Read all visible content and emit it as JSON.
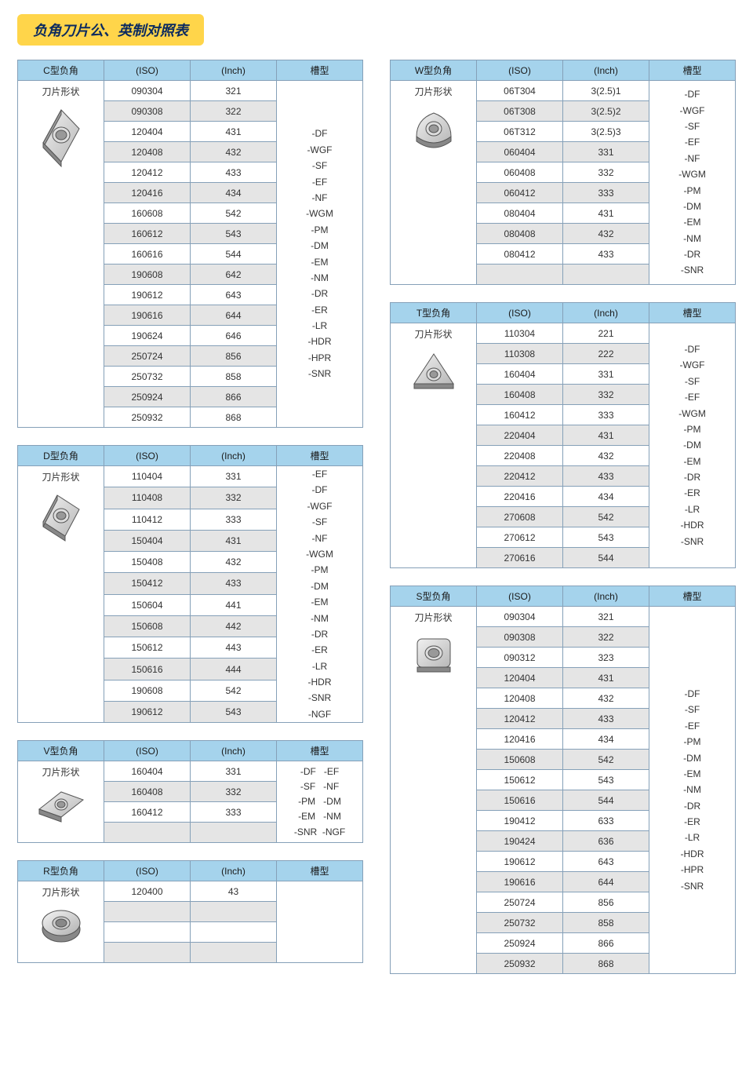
{
  "page_title": "负角刀片公、英制对照表",
  "headers": {
    "iso": "(ISO)",
    "inch": "(Inch)",
    "type": "槽型",
    "shape_label": "刀片形状"
  },
  "colors": {
    "header_bg": "#a5d3ec",
    "border": "#85a0b8",
    "alt_row": "#e5e5e5",
    "title_bg": "#ffd54a",
    "title_fg": "#0b2a5f"
  },
  "tableC": {
    "name": "C型负角",
    "rows": [
      [
        "090304",
        "321"
      ],
      [
        "090308",
        "322"
      ],
      [
        "120404",
        "431"
      ],
      [
        "120408",
        "432"
      ],
      [
        "120412",
        "433"
      ],
      [
        "120416",
        "434"
      ],
      [
        "160608",
        "542"
      ],
      [
        "160612",
        "543"
      ],
      [
        "160616",
        "544"
      ],
      [
        "190608",
        "642"
      ],
      [
        "190612",
        "643"
      ],
      [
        "190616",
        "644"
      ],
      [
        "190624",
        "646"
      ],
      [
        "250724",
        "856"
      ],
      [
        "250732",
        "858"
      ],
      [
        "250924",
        "866"
      ],
      [
        "250932",
        "868"
      ]
    ],
    "types": [
      "-DF",
      "-WGF",
      "-SF",
      "-EF",
      "-NF",
      "-WGM",
      "-PM",
      "-DM",
      "-EM",
      "-NM",
      "-DR",
      "-ER",
      "-LR",
      "-HDR",
      "-HPR",
      "-SNR"
    ]
  },
  "tableD": {
    "name": "D型负角",
    "rows": [
      [
        "110404",
        "331"
      ],
      [
        "110408",
        "332"
      ],
      [
        "110412",
        "333"
      ],
      [
        "150404",
        "431"
      ],
      [
        "150408",
        "432"
      ],
      [
        "150412",
        "433"
      ],
      [
        "150604",
        "441"
      ],
      [
        "150608",
        "442"
      ],
      [
        "150612",
        "443"
      ],
      [
        "150616",
        "444"
      ],
      [
        "190608",
        "542"
      ],
      [
        "190612",
        "543"
      ]
    ],
    "types": [
      "-EF",
      "-DF",
      "-WGF",
      "-SF",
      "-NF",
      "-WGM",
      "-PM",
      "-DM",
      "-EM",
      "-NM",
      "-DR",
      "-ER",
      "-LR",
      "-HDR",
      "-SNR",
      "-NGF"
    ]
  },
  "tableV": {
    "name": "V型负角",
    "rows": [
      [
        "160404",
        "331"
      ],
      [
        "160408",
        "332"
      ],
      [
        "160412",
        "333"
      ],
      [
        "",
        ""
      ]
    ],
    "types": [
      "-DF   -EF",
      "-SF   -NF",
      "-PM   -DM",
      "-EM   -NM",
      "-SNR  -NGF"
    ]
  },
  "tableR": {
    "name": "R型负角",
    "rows": [
      [
        "120400",
        "43"
      ],
      [
        "",
        ""
      ],
      [
        "",
        ""
      ],
      [
        "",
        ""
      ]
    ],
    "types": []
  },
  "tableW": {
    "name": "W型负角",
    "rows": [
      [
        "06T304",
        "3(2.5)1"
      ],
      [
        "06T308",
        "3(2.5)2"
      ],
      [
        "06T312",
        "3(2.5)3"
      ],
      [
        "060404",
        "331"
      ],
      [
        "060408",
        "332"
      ],
      [
        "060412",
        "333"
      ],
      [
        "080404",
        "431"
      ],
      [
        "080408",
        "432"
      ],
      [
        "080412",
        "433"
      ],
      [
        "",
        ""
      ]
    ],
    "types": [
      "-DF",
      "-WGF",
      "-SF",
      "-EF",
      "-NF",
      "-WGM",
      "-PM",
      "-DM",
      "-EM",
      "-NM",
      "-DR",
      "-SNR"
    ]
  },
  "tableT": {
    "name": "T型负角",
    "rows": [
      [
        "110304",
        "221"
      ],
      [
        "110308",
        "222"
      ],
      [
        "160404",
        "331"
      ],
      [
        "160408",
        "332"
      ],
      [
        "160412",
        "333"
      ],
      [
        "220404",
        "431"
      ],
      [
        "220408",
        "432"
      ],
      [
        "220412",
        "433"
      ],
      [
        "220416",
        "434"
      ],
      [
        "270608",
        "542"
      ],
      [
        "270612",
        "543"
      ],
      [
        "270616",
        "544"
      ]
    ],
    "types": [
      "-DF",
      "-WGF",
      "-SF",
      "-EF",
      "-WGM",
      "-PM",
      "-DM",
      "-EM",
      "-DR",
      "-ER",
      "-LR",
      "-HDR",
      "-SNR"
    ]
  },
  "tableS": {
    "name": "S型负角",
    "rows": [
      [
        "090304",
        "321"
      ],
      [
        "090308",
        "322"
      ],
      [
        "090312",
        "323"
      ],
      [
        "120404",
        "431"
      ],
      [
        "120408",
        "432"
      ],
      [
        "120412",
        "433"
      ],
      [
        "120416",
        "434"
      ],
      [
        "150608",
        "542"
      ],
      [
        "150612",
        "543"
      ],
      [
        "150616",
        "544"
      ],
      [
        "190412",
        "633"
      ],
      [
        "190424",
        "636"
      ],
      [
        "190612",
        "643"
      ],
      [
        "190616",
        "644"
      ],
      [
        "250724",
        "856"
      ],
      [
        "250732",
        "858"
      ],
      [
        "250924",
        "866"
      ],
      [
        "250932",
        "868"
      ]
    ],
    "types": [
      "-DF",
      "-SF",
      "-EF",
      "-PM",
      "-DM",
      "-EM",
      "-NM",
      "-DR",
      "-ER",
      "-LR",
      "-HDR",
      "-HPR",
      "-SNR"
    ]
  },
  "shapes": {
    "C": "<svg class='insert-svg' width='70' height='80' viewBox='0 0 70 80'><defs><linearGradient id='gC' x1='0' y1='0' x2='1' y2='1'><stop offset='0' stop-color='#f0f0f0'/><stop offset='1' stop-color='#b8b8b8'/></linearGradient></defs><path d='M35 6 L58 30 L35 72 L12 48 Z' fill='url(#gC)' stroke='#555'/><path d='M35 6 L12 48 L12 54 L35 12 Z' fill='#999' stroke='#555'/><path d='M12 48 L35 72 L35 78 L12 54 Z' fill='#888' stroke='#555'/><ellipse cx='35' cy='38' rx='11' ry='10' fill='#ddd' stroke='#555'/><ellipse cx='35' cy='38' rx='7' ry='6' fill='#999' stroke='#555'/></svg>",
    "D": "<svg class='insert-svg' width='70' height='70' viewBox='0 0 70 70'><defs><linearGradient id='gD' x1='0' y1='0' x2='1' y2='1'><stop offset='0' stop-color='#f0f0f0'/><stop offset='1' stop-color='#b8b8b8'/></linearGradient></defs><path d='M30 6 L58 24 L40 58 L12 40 Z' fill='url(#gD)' stroke='#555'/><path d='M12 40 L40 58 L40 64 L12 46 Z' fill='#888' stroke='#555'/><path d='M30 6 L12 40 L12 46 L30 12 Z' fill='#999' stroke='#555'/><ellipse cx='35' cy='32' rx='10' ry='9' fill='#ddd' stroke='#555'/><ellipse cx='35' cy='32' rx='6' ry='5' fill='#999' stroke='#555'/></svg>",
    "V": "<svg class='insert-svg' width='76' height='50' viewBox='0 0 76 50'><defs><linearGradient id='gV' x1='0' y1='0' x2='1' y2='1'><stop offset='0' stop-color='#f0f0f0'/><stop offset='1' stop-color='#b8b8b8'/></linearGradient></defs><path d='M10 30 L38 8 L66 18 L38 40 Z' fill='url(#gV)' stroke='#555'/><path d='M10 30 L38 40 L38 46 L10 36 Z' fill='#888' stroke='#555'/><ellipse cx='38' cy='24' rx='8' ry='7' fill='#ddd' stroke='#555'/><ellipse cx='38' cy='24' rx='5' ry='4' fill='#999' stroke='#555'/></svg>",
    "R": "<svg class='insert-svg' width='64' height='54' viewBox='0 0 64 54'><defs><linearGradient id='gR' x1='0' y1='0' x2='1' y2='1'><stop offset='0' stop-color='#f5f5f5'/><stop offset='1' stop-color='#b0b0b0'/></linearGradient></defs><ellipse cx='32' cy='30' rx='24' ry='16' fill='#888' stroke='#555'/><ellipse cx='32' cy='22' rx='24' ry='16' fill='url(#gR)' stroke='#555'/><ellipse cx='32' cy='22' rx='11' ry='8' fill='#ccc' stroke='#555'/><ellipse cx='32' cy='22' rx='7' ry='5' fill='#888' stroke='#555'/></svg>",
    "W": "<svg class='insert-svg' width='72' height='66' viewBox='0 0 72 66'><defs><linearGradient id='gW' x1='0' y1='0' x2='1' y2='1'><stop offset='0' stop-color='#f0f0f0'/><stop offset='1' stop-color='#b8b8b8'/></linearGradient></defs><path d='M36 10 Q58 18 58 40 Q36 56 14 40 Q14 18 36 10 Z' fill='url(#gW)' stroke='#555'/><path d='M14 40 Q36 56 58 40 L58 46 Q36 62 14 46 Z' fill='#888' stroke='#555'/><ellipse cx='36' cy='30' rx='10' ry='9' fill='#ddd' stroke='#555'/><ellipse cx='36' cy='30' rx='6' ry='5' fill='#999' stroke='#555'/></svg>",
    "T": "<svg class='insert-svg' width='70' height='62' viewBox='0 0 70 62'><defs><linearGradient id='gT' x1='0' y1='0' x2='1' y2='1'><stop offset='0' stop-color='#f0f0f0'/><stop offset='1' stop-color='#b8b8b8'/></linearGradient></defs><path d='M35 8 L60 46 L10 46 Z' fill='url(#gT)' stroke='#555'/><path d='M10 46 L60 46 L60 52 L10 52 Z' fill='#888' stroke='#555'/><ellipse cx='35' cy='34' rx='9' ry='8' fill='#ddd' stroke='#555'/><ellipse cx='35' cy='34' rx='5' ry='4.5' fill='#999' stroke='#555'/></svg>",
    "S": "<svg class='insert-svg' width='66' height='60' viewBox='0 0 66 60'><defs><linearGradient id='gS' x1='0' y1='0' x2='1' y2='1'><stop offset='0' stop-color='#f0f0f0'/><stop offset='1' stop-color='#b8b8b8'/></linearGradient></defs><rect x='12' y='10' width='42' height='36' rx='6' fill='url(#gS)' stroke='#555'/><path d='M12 46 L54 46 L54 52 L12 52 Z' fill='#888' stroke='#555'/><ellipse cx='33' cy='28' rx='11' ry='9' fill='#ddd' stroke='#555'/><ellipse cx='33' cy='28' rx='7' ry='5.5' fill='#999' stroke='#555'/></svg>"
  }
}
